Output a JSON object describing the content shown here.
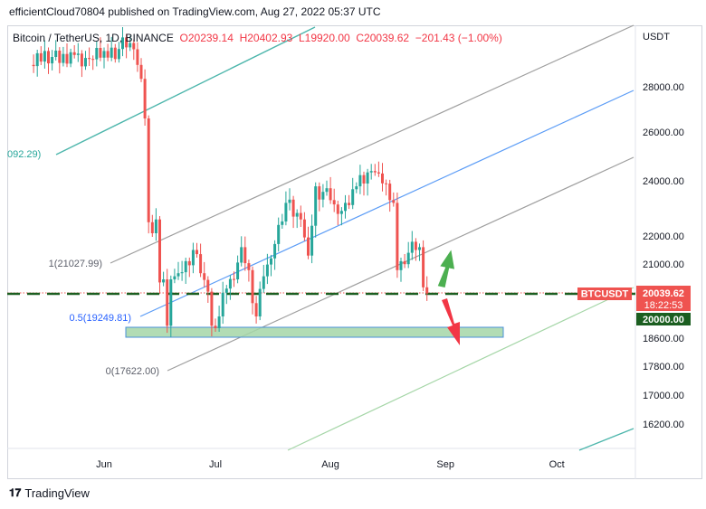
{
  "header": {
    "published_text": "efficientCloud70804 published on TradingView.com, Aug 27, 2022 05:37 UTC"
  },
  "legend": {
    "symbol": "Bitcoin / TetherUS, 1D, BINANCE",
    "open": "O20239.14",
    "high": "H20402.93",
    "low": "L19920.00",
    "close": "C20039.62",
    "change": "−201.43 (−1.00%)"
  },
  "footer": {
    "brand": "TradingView"
  },
  "colors": {
    "up": "#26a69a",
    "down": "#ef5350",
    "channel_gray": "#9e9e9e",
    "channel_blue": "#5b9cf6",
    "teal_line": "#4db6ac",
    "light_green_line": "#a5d6a7",
    "support_zone": "#a5d6a7",
    "price_tag": "#ef5350",
    "level_tag": "#1b5e20"
  },
  "chart_data": {
    "type": "candlestick",
    "symbol": "BTCUSDT",
    "interval": "1D",
    "y_axis_unit": "USDT",
    "y_ticks": [
      "16200.00",
      "17000.00",
      "17800.00",
      "18600.00",
      "20000.00",
      "21000.00",
      "22000.00",
      "24000.00",
      "26000.00",
      "28000.00"
    ],
    "x_ticks": [
      "Jun",
      "Jul",
      "Aug",
      "Sep",
      "Oct"
    ],
    "current_price_label": "BTCUSDT",
    "current_price": "20039.62",
    "countdown": "18:22:53",
    "level_label": "20000.00",
    "fib_labels": [
      "1(21027.99)",
      "0.5(19249.81)",
      "0(17622.00)",
      "092.29)"
    ],
    "series_daily_close": [
      {
        "d": "2022-05-12",
        "c": 29100
      },
      {
        "d": "2022-05-16",
        "c": 29800
      },
      {
        "d": "2022-05-20",
        "c": 29200
      },
      {
        "d": "2022-05-24",
        "c": 29600
      },
      {
        "d": "2022-05-28",
        "c": 29400
      },
      {
        "d": "2022-06-01",
        "c": 29800
      },
      {
        "d": "2022-06-05",
        "c": 29900
      },
      {
        "d": "2022-06-08",
        "c": 30200
      },
      {
        "d": "2022-06-10",
        "c": 29100
      },
      {
        "d": "2022-06-11",
        "c": 28400
      },
      {
        "d": "2022-06-12",
        "c": 26600
      },
      {
        "d": "2022-06-13",
        "c": 22500
      },
      {
        "d": "2022-06-14",
        "c": 22100
      },
      {
        "d": "2022-06-15",
        "c": 22600
      },
      {
        "d": "2022-06-16",
        "c": 20400
      },
      {
        "d": "2022-06-17",
        "c": 20500
      },
      {
        "d": "2022-06-18",
        "c": 19000
      },
      {
        "d": "2022-06-19",
        "c": 20500
      },
      {
        "d": "2022-06-21",
        "c": 20700
      },
      {
        "d": "2022-06-23",
        "c": 21100
      },
      {
        "d": "2022-06-25",
        "c": 21500
      },
      {
        "d": "2022-06-27",
        "c": 20700
      },
      {
        "d": "2022-06-29",
        "c": 20100
      },
      {
        "d": "2022-06-30",
        "c": 19000
      },
      {
        "d": "2022-07-02",
        "c": 19300
      },
      {
        "d": "2022-07-04",
        "c": 20200
      },
      {
        "d": "2022-07-06",
        "c": 20500
      },
      {
        "d": "2022-07-08",
        "c": 21600
      },
      {
        "d": "2022-07-10",
        "c": 20800
      },
      {
        "d": "2022-07-12",
        "c": 19300
      },
      {
        "d": "2022-07-14",
        "c": 20600
      },
      {
        "d": "2022-07-16",
        "c": 21200
      },
      {
        "d": "2022-07-18",
        "c": 22400
      },
      {
        "d": "2022-07-20",
        "c": 23200
      },
      {
        "d": "2022-07-22",
        "c": 22700
      },
      {
        "d": "2022-07-24",
        "c": 22600
      },
      {
        "d": "2022-07-26",
        "c": 21300
      },
      {
        "d": "2022-07-28",
        "c": 23800
      },
      {
        "d": "2022-07-30",
        "c": 23600
      },
      {
        "d": "2022-08-01",
        "c": 23300
      },
      {
        "d": "2022-08-03",
        "c": 22800
      },
      {
        "d": "2022-08-05",
        "c": 23200
      },
      {
        "d": "2022-08-08",
        "c": 23800
      },
      {
        "d": "2022-08-10",
        "c": 23900
      },
      {
        "d": "2022-08-12",
        "c": 24400
      },
      {
        "d": "2022-08-14",
        "c": 24300
      },
      {
        "d": "2022-08-16",
        "c": 23900
      },
      {
        "d": "2022-08-17",
        "c": 23300
      },
      {
        "d": "2022-08-18",
        "c": 23200
      },
      {
        "d": "2022-08-19",
        "c": 20800
      },
      {
        "d": "2022-08-20",
        "c": 21100
      },
      {
        "d": "2022-08-22",
        "c": 21400
      },
      {
        "d": "2022-08-24",
        "c": 21500
      },
      {
        "d": "2022-08-25",
        "c": 21600
      },
      {
        "d": "2022-08-26",
        "c": 20240
      },
      {
        "d": "2022-08-27",
        "c": 20040
      }
    ]
  }
}
